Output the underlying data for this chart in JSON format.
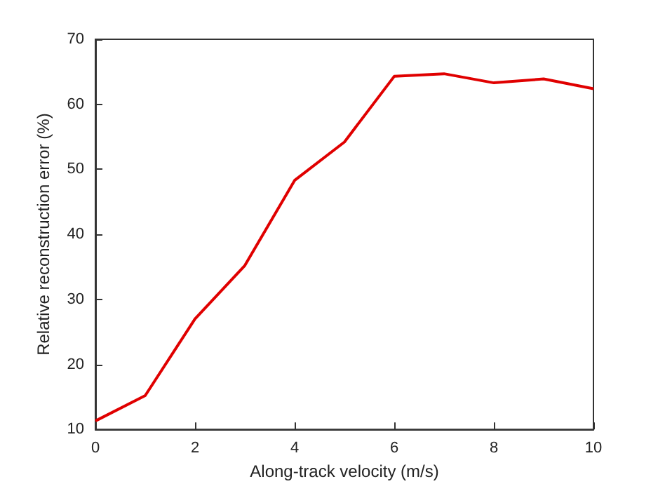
{
  "chart_data": {
    "type": "line",
    "xlabel": "Along-track velocity (m/s)",
    "ylabel": "Relative reconstruction error (%)",
    "x": [
      0,
      1,
      2,
      3,
      4,
      5,
      6,
      7,
      8,
      9,
      10
    ],
    "series": [
      {
        "color": "#e00000",
        "values": [
          11.3,
          15.2,
          27,
          35.2,
          48.3,
          54.2,
          64.3,
          64.7,
          63.3,
          63.9,
          62.4
        ]
      }
    ],
    "xlim": [
      0,
      10
    ],
    "xticks": [
      0,
      2,
      4,
      6,
      8,
      10
    ],
    "ylim": [
      10,
      70
    ],
    "yticks": [
      10,
      20,
      30,
      40,
      50,
      60,
      70
    ],
    "grid": false,
    "marker": "none",
    "line_style": "solid"
  }
}
